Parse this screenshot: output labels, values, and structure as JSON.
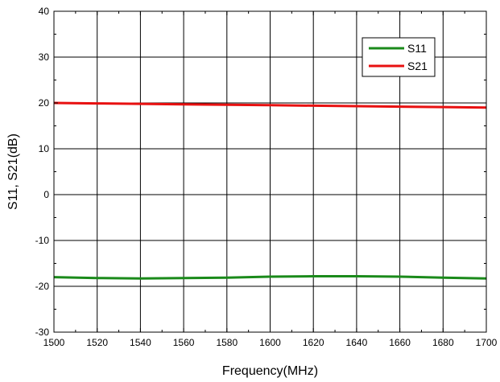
{
  "chart_data": {
    "type": "line",
    "title": "",
    "xlabel": "Frequency(MHz)",
    "ylabel": "S11, S21(dB)",
    "xlim": [
      1500,
      1700
    ],
    "ylim": [
      -30,
      40
    ],
    "x_ticks": [
      "1500",
      "1520",
      "1540",
      "1560",
      "1580",
      "1600",
      "1620",
      "1640",
      "1660",
      "1680",
      "1700"
    ],
    "y_ticks": [
      "-30",
      "-20",
      "-10",
      "0",
      "10",
      "20",
      "30",
      "40"
    ],
    "grid": true,
    "legend_position": "top-right",
    "series": [
      {
        "name": "S11",
        "color": "#1a8a1a",
        "x": [
          1500,
          1520,
          1540,
          1560,
          1580,
          1600,
          1620,
          1640,
          1660,
          1680,
          1700
        ],
        "y": [
          -18.0,
          -18.2,
          -18.3,
          -18.2,
          -18.1,
          -17.9,
          -17.8,
          -17.8,
          -17.9,
          -18.1,
          -18.3
        ]
      },
      {
        "name": "S21",
        "color": "#e81010",
        "x": [
          1500,
          1520,
          1540,
          1560,
          1580,
          1600,
          1620,
          1640,
          1660,
          1680,
          1700
        ],
        "y": [
          20.0,
          19.9,
          19.8,
          19.7,
          19.6,
          19.5,
          19.4,
          19.3,
          19.2,
          19.1,
          19.0
        ]
      }
    ]
  }
}
